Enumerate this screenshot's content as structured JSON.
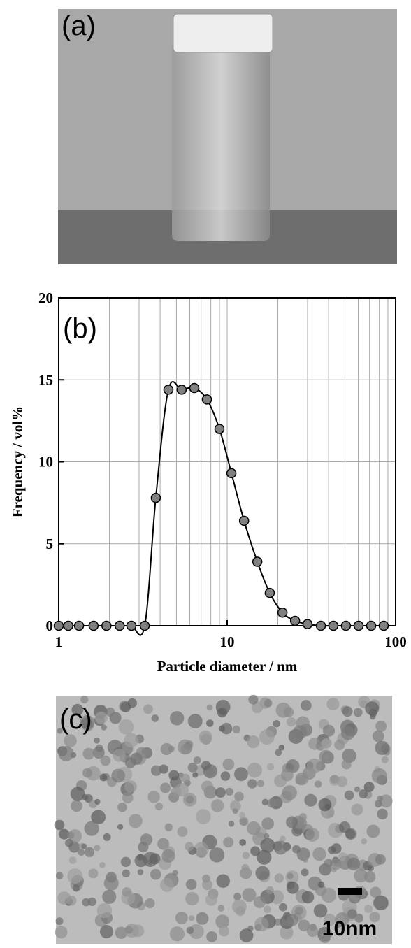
{
  "panels": {
    "a": {
      "label": "(a)"
    },
    "c": {
      "label": "(c)",
      "scale_bar": "10nm"
    }
  },
  "chart_data": {
    "type": "line",
    "annotation": "(b)",
    "x_label": "Particle diameter / nm",
    "y_label": "Frequency / vol%",
    "x": [
      1,
      1.14,
      1.32,
      1.61,
      1.92,
      2.3,
      2.7,
      3.24,
      3.77,
      4.48,
      5.37,
      6.38,
      7.58,
      9.0,
      10.6,
      12.6,
      15.1,
      17.9,
      21.3,
      25.3,
      30.0,
      36.0,
      42.7,
      50.7,
      60.3,
      71.6,
      85.0
    ],
    "series": [
      {
        "color": "#000000",
        "marker_color": "#808080",
        "values": [
          0,
          0,
          0,
          0,
          0,
          0,
          0,
          0,
          7.8,
          14.4,
          14.4,
          14.5,
          13.8,
          12.0,
          9.3,
          6.4,
          3.9,
          2.0,
          0.8,
          0.3,
          0.1,
          0,
          0,
          0,
          0,
          0,
          0
        ]
      }
    ],
    "xlim": [
      1,
      100
    ],
    "ylim": [
      0,
      20
    ],
    "xscale": "log",
    "xticks": [
      1,
      10,
      100
    ],
    "xminorticks": [
      2,
      3,
      4,
      5,
      6,
      7,
      8,
      9,
      20,
      30,
      40,
      50,
      60,
      70,
      80,
      90
    ],
    "yticks": [
      0,
      5,
      10,
      15,
      20
    ],
    "grid": true
  }
}
